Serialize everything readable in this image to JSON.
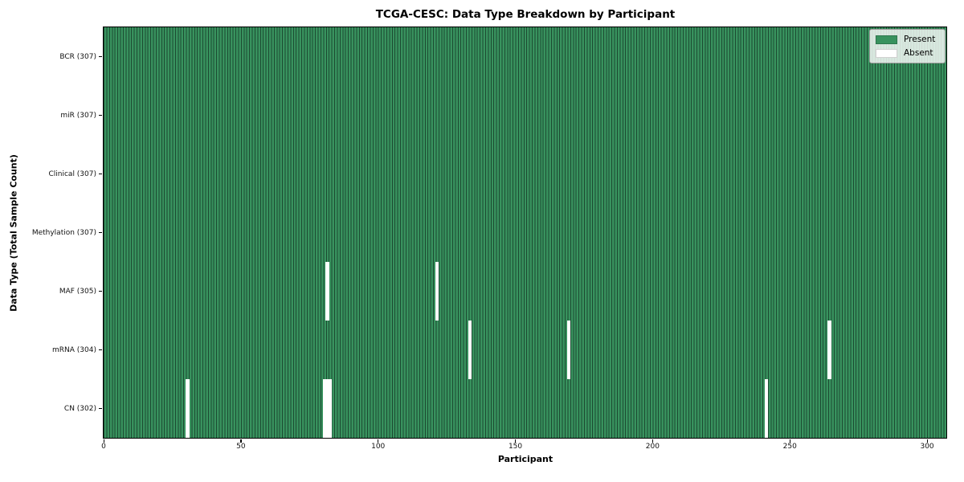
{
  "chart_data": {
    "type": "heatmap",
    "title": "TCGA-CESC: Data Type Breakdown by Participant",
    "xlabel": "Participant",
    "ylabel": "Data Type (Total Sample Count)",
    "n_participants": 307,
    "x_axis": {
      "min": 0,
      "max": 307,
      "ticks": [
        0,
        50,
        100,
        150,
        200,
        250,
        300
      ]
    },
    "colors": {
      "present": "#38925e",
      "absent": "#ffffff",
      "grid_line": "#1c4a31",
      "row_divider": "#0c2416"
    },
    "legend": {
      "position": "upper-right",
      "entries": [
        {
          "label": "Present",
          "color": "#38925e"
        },
        {
          "label": "Absent",
          "color": "#ffffff"
        }
      ]
    },
    "rows": [
      {
        "label": "BCR (307)",
        "data_type": "BCR",
        "present_count": 307,
        "absent_participants": []
      },
      {
        "label": "miR (307)",
        "data_type": "miR",
        "present_count": 307,
        "absent_participants": []
      },
      {
        "label": "Clinical (307)",
        "data_type": "Clinical",
        "present_count": 307,
        "absent_participants": []
      },
      {
        "label": "Methylation (307)",
        "data_type": "Methylation",
        "present_count": 307,
        "absent_participants": []
      },
      {
        "label": "MAF (305)",
        "data_type": "MAF",
        "present_count": 305,
        "absent_participants": [
          81,
          121
        ]
      },
      {
        "label": "mRNA (304)",
        "data_type": "mRNA",
        "present_count": 304,
        "absent_participants": [
          133,
          169,
          264
        ]
      },
      {
        "label": "CN (302)",
        "data_type": "CN",
        "present_count": 302,
        "absent_participants": [
          30,
          80,
          81,
          82,
          241
        ]
      }
    ]
  }
}
